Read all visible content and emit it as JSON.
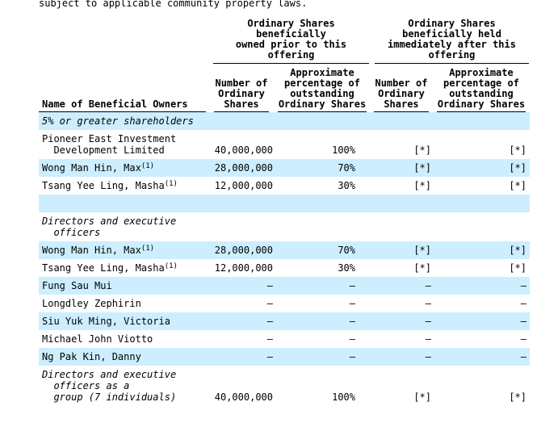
{
  "page": {
    "intro_text": "subject to applicable community property laws."
  },
  "colors": {
    "highlight": "#cceeff",
    "text": "#000000",
    "rule": "#000000"
  },
  "table": {
    "name_header": "Name of Beneficial Owners",
    "groups": [
      {
        "title": "Ordinary Shares\nbeneficially\nowned prior to this\noffering",
        "columns": [
          "Number of\nOrdinary\nShares",
          "Approximate\npercentage of\noutstanding\nOrdinary Shares"
        ]
      },
      {
        "title": "Ordinary Shares\nbeneficially held\nimmediately after this\noffering",
        "columns": [
          "Number of\nOrdinary\nShares",
          "Approximate\npercentage of\noutstanding\nOrdinary Shares"
        ]
      }
    ],
    "rows": [
      {
        "name": "5% or greater shareholders",
        "sup": "",
        "italic": true,
        "highlight": true,
        "values": [
          "",
          "",
          "",
          ""
        ]
      },
      {
        "name": "Pioneer East Investment\n  Development Limited",
        "sup": "",
        "italic": false,
        "highlight": false,
        "values": [
          "40,000,000",
          "100%",
          "[*]",
          "[*]"
        ]
      },
      {
        "name": "Wong Man Hin, Max",
        "sup": "(1)",
        "italic": false,
        "highlight": true,
        "values": [
          "28,000,000",
          "70%",
          "[*]",
          "[*]"
        ]
      },
      {
        "name": "Tsang Yee Ling, Masha",
        "sup": "(1)",
        "italic": false,
        "highlight": false,
        "values": [
          "12,000,000",
          "30%",
          "[*]",
          "[*]"
        ]
      },
      {
        "name": "",
        "sup": "",
        "italic": false,
        "highlight": true,
        "values": [
          "",
          "",
          "",
          ""
        ]
      },
      {
        "name": "Directors and executive\n  officers",
        "sup": "",
        "italic": true,
        "highlight": false,
        "values": [
          "",
          "",
          "",
          ""
        ]
      },
      {
        "name": "Wong Man Hin, Max",
        "sup": "(1)",
        "italic": false,
        "highlight": true,
        "values": [
          "28,000,000",
          "70%",
          "[*]",
          "[*]"
        ]
      },
      {
        "name": "Tsang Yee Ling, Masha",
        "sup": "(1)",
        "italic": false,
        "highlight": false,
        "values": [
          "12,000,000",
          "30%",
          "[*]",
          "[*]"
        ]
      },
      {
        "name": "Fung Sau Mui",
        "sup": "",
        "italic": false,
        "highlight": true,
        "values": [
          "—",
          "—",
          "—",
          "—"
        ]
      },
      {
        "name": "Longdley Zephirin",
        "sup": "",
        "italic": false,
        "highlight": false,
        "values": [
          "—",
          "—",
          "—",
          "—"
        ]
      },
      {
        "name": "Siu Yuk Ming, Victoria",
        "sup": "",
        "italic": false,
        "highlight": true,
        "values": [
          "—",
          "—",
          "—",
          "—"
        ]
      },
      {
        "name": "Michael John Viotto",
        "sup": "",
        "italic": false,
        "highlight": false,
        "values": [
          "—",
          "—",
          "—",
          "—"
        ]
      },
      {
        "name": "Ng Pak Kin, Danny",
        "sup": "",
        "italic": false,
        "highlight": true,
        "values": [
          "—",
          "—",
          "—",
          "—"
        ]
      },
      {
        "name": "Directors and executive\n  officers as a\n  group (7 individuals)",
        "sup": "",
        "italic": true,
        "highlight": false,
        "values": [
          "40,000,000",
          "100%",
          "[*]",
          "[*]"
        ]
      }
    ]
  }
}
